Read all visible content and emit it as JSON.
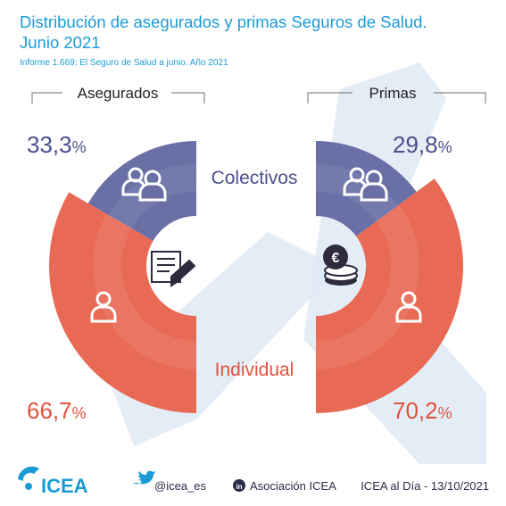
{
  "header": {
    "title_line1": "Distribución de asegurados y primas Seguros de Salud.",
    "title_line2": "Junio 2021",
    "subtitle": "Informe 1.669: El Seguro de Salud a junio. Año 2021"
  },
  "colors": {
    "title": "#1a9bd7",
    "colectivos": "#6a6fa6",
    "individual": "#e86a55",
    "colectivos_text": "#4b4f8c",
    "individual_text": "#e0533d",
    "watermark": "#dde9f4",
    "footer_text": "#2b2b4a"
  },
  "chart_data": {
    "type": "pie",
    "categories": [
      "Colectivos",
      "Individual"
    ],
    "charts": [
      {
        "title": "Asegurados",
        "values": [
          33.3,
          66.7
        ],
        "value_labels": [
          "33,3%",
          "66,7%"
        ],
        "center_icon": "document-signature-icon"
      },
      {
        "title": "Primas",
        "values": [
          29.8,
          70.2
        ],
        "value_labels": [
          "29,8%",
          "70,2%"
        ],
        "center_icon": "euro-coins-icon"
      }
    ]
  },
  "labels": {
    "colectivos": "Colectivos",
    "individual": "Individual"
  },
  "footer": {
    "logo_text": "ICEA",
    "twitter": "@icea_es",
    "linkedin": "Asociación ICEA",
    "date_text": "ICEA al Día - 13/10/2021"
  }
}
